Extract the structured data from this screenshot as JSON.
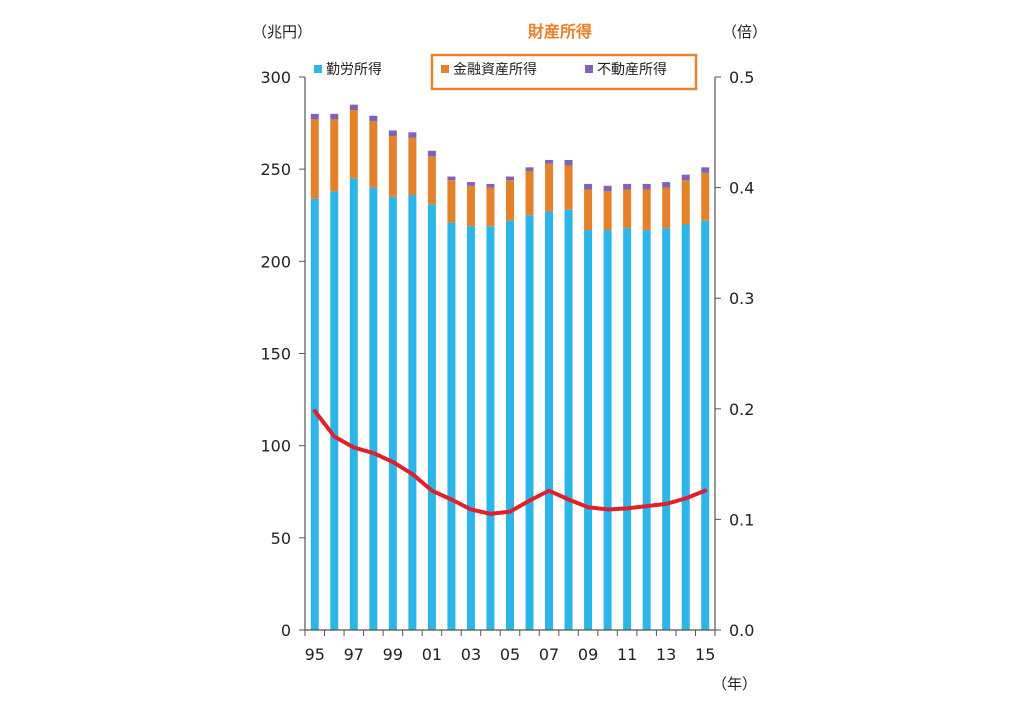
{
  "colors": {
    "labor": "#2BB5E8",
    "financial": "#E4812B",
    "realestate": "#7F63B8",
    "line": "#E0202A",
    "axis": "#555555",
    "title": "#E4812B"
  },
  "chart_data": {
    "type": "bar",
    "title": "財産所得",
    "left_unit": "（兆円）",
    "right_unit": "（倍）",
    "x_unit": "（年）",
    "categories": [
      "95",
      "96",
      "97",
      "98",
      "99",
      "00",
      "01",
      "02",
      "03",
      "04",
      "05",
      "06",
      "07",
      "08",
      "09",
      "10",
      "11",
      "12",
      "13",
      "14",
      "15"
    ],
    "x_tick_labels": [
      "95",
      "",
      "97",
      "",
      "99",
      "",
      "01",
      "",
      "03",
      "",
      "05",
      "",
      "07",
      "",
      "09",
      "",
      "11",
      "",
      "13",
      "",
      "15"
    ],
    "y_ticks": [
      "0",
      "50",
      "100",
      "150",
      "200",
      "250",
      "300"
    ],
    "y2_ticks": [
      "0.0",
      "0.1",
      "0.2",
      "0.3",
      "0.4",
      "0.5"
    ],
    "ylim": [
      0,
      300
    ],
    "y2lim": [
      0,
      0.5
    ],
    "stacked": true,
    "series": [
      {
        "name": "勤労所得",
        "values": [
          234,
          238,
          245,
          240,
          235,
          236,
          231,
          221,
          219,
          219,
          222,
          225,
          227,
          228,
          217,
          217,
          218,
          217,
          218,
          220,
          222
        ]
      },
      {
        "name": "金融資産所得",
        "values": [
          43,
          39,
          37,
          36,
          33,
          31,
          26,
          23,
          22,
          21,
          22,
          24,
          26,
          24,
          22,
          21,
          21,
          22,
          22,
          24,
          26
        ]
      },
      {
        "name": "不動産所得",
        "values": [
          3,
          3,
          3,
          3,
          3,
          3,
          3,
          2,
          2,
          2,
          2,
          2,
          2,
          3,
          3,
          3,
          3,
          3,
          3,
          3,
          3
        ]
      }
    ],
    "line_series": {
      "axis": "right",
      "values": [
        0.198,
        0.175,
        0.165,
        0.16,
        0.152,
        0.141,
        0.126,
        0.118,
        0.109,
        0.105,
        0.107,
        0.117,
        0.126,
        0.118,
        0.111,
        0.109,
        0.11,
        0.112,
        0.114,
        0.119,
        0.126
      ]
    },
    "legend_position": "top",
    "grid": false
  }
}
